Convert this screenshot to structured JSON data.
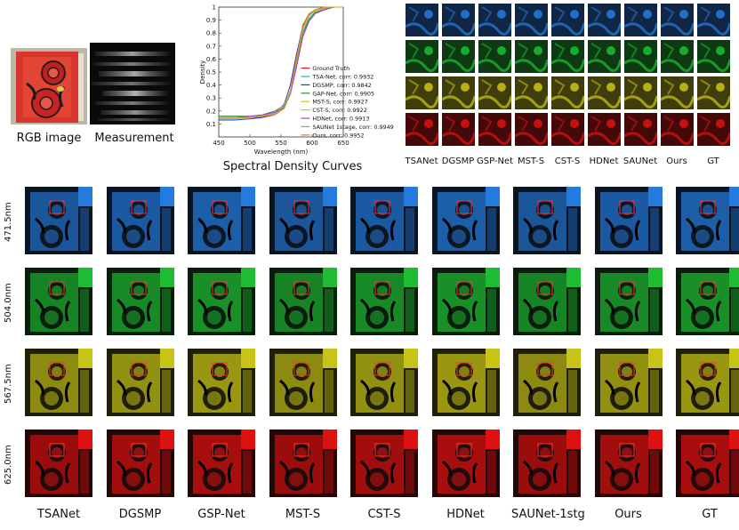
{
  "top_captions": {
    "rgb": "RGB image",
    "measurement": "Measurement",
    "spectral": "Spectral Density Curves"
  },
  "methods_bottom": [
    "TSANet",
    "DGSMP",
    "GSP-Net",
    "MST-S",
    "CST-S",
    "HDNet",
    "SAUNet-1stg",
    "Ours",
    "GT"
  ],
  "methods_top": [
    "TSANet",
    "DGSMP",
    "GSP-Net",
    "MST-S",
    "CST-S",
    "HDNet",
    "SAUNet",
    "Ours",
    "GT"
  ],
  "wavelengths": [
    "471.5nm",
    "504.0nm",
    "567.5nm",
    "625.0nm"
  ],
  "band_colors": [
    "#2a8cff",
    "#22d83a",
    "#e6e21a",
    "#ff1414"
  ],
  "chart_data": {
    "type": "line",
    "title": "",
    "xlabel": "Wavelength (nm)",
    "ylabel": "Density",
    "xlim": [
      450,
      650
    ],
    "ylim": [
      0,
      1
    ],
    "xticks": [
      450,
      500,
      550,
      600,
      650
    ],
    "yticks": [
      0.1,
      0.2,
      0.3,
      0.4,
      0.5,
      0.6,
      0.7,
      0.8,
      0.9,
      1
    ],
    "x": [
      450,
      475,
      500,
      520,
      540,
      555,
      565,
      575,
      585,
      595,
      605,
      620,
      635,
      650
    ],
    "series": [
      {
        "name": "Ground Truth",
        "color": "#e02020",
        "values": [
          0.15,
          0.15,
          0.15,
          0.15,
          0.17,
          0.22,
          0.35,
          0.62,
          0.86,
          0.95,
          0.98,
          1.0,
          1.0,
          1.0
        ]
      },
      {
        "name": "TSA-Net, corr: 0.9932",
        "color": "#1ab5c8",
        "values": [
          0.14,
          0.14,
          0.15,
          0.16,
          0.18,
          0.22,
          0.33,
          0.55,
          0.78,
          0.9,
          0.95,
          0.98,
          1.0,
          1.0
        ]
      },
      {
        "name": "DGSMP, corr: 0.9842",
        "color": "#1a3fd0",
        "values": [
          0.13,
          0.13,
          0.14,
          0.15,
          0.18,
          0.25,
          0.4,
          0.64,
          0.85,
          0.94,
          0.97,
          0.99,
          1.0,
          1.0
        ]
      },
      {
        "name": "GAP-Net, corr: 0.9905",
        "color": "#1e8f3a",
        "values": [
          0.16,
          0.16,
          0.16,
          0.17,
          0.2,
          0.24,
          0.34,
          0.56,
          0.8,
          0.91,
          0.96,
          0.98,
          1.0,
          1.0
        ]
      },
      {
        "name": "MST-S, corr: 0.9927",
        "color": "#c8c81a",
        "values": [
          0.15,
          0.15,
          0.15,
          0.16,
          0.18,
          0.23,
          0.34,
          0.58,
          0.82,
          0.93,
          0.97,
          0.99,
          1.0,
          1.0
        ]
      },
      {
        "name": "CST-S, corr: 0.9922",
        "color": "#8fe03a",
        "values": [
          0.14,
          0.14,
          0.15,
          0.16,
          0.19,
          0.24,
          0.36,
          0.6,
          0.83,
          0.93,
          0.97,
          0.99,
          1.0,
          1.0
        ]
      },
      {
        "name": "HDNet, corr: 0.9913",
        "color": "#b03ad0",
        "values": [
          0.15,
          0.15,
          0.16,
          0.17,
          0.19,
          0.23,
          0.33,
          0.54,
          0.77,
          0.89,
          0.95,
          0.98,
          1.0,
          1.0
        ]
      },
      {
        "name": "SAUNet 1stage, corr: 0.9949",
        "color": "#9a9a9a",
        "values": [
          0.15,
          0.15,
          0.15,
          0.16,
          0.18,
          0.22,
          0.34,
          0.6,
          0.84,
          0.94,
          0.98,
          0.99,
          1.0,
          1.0
        ]
      },
      {
        "name": "Ours, corr: 0.9952",
        "color": "#e08a1a",
        "values": [
          0.15,
          0.15,
          0.15,
          0.16,
          0.17,
          0.22,
          0.35,
          0.61,
          0.85,
          0.95,
          0.98,
          1.0,
          1.0,
          1.0
        ]
      }
    ]
  }
}
